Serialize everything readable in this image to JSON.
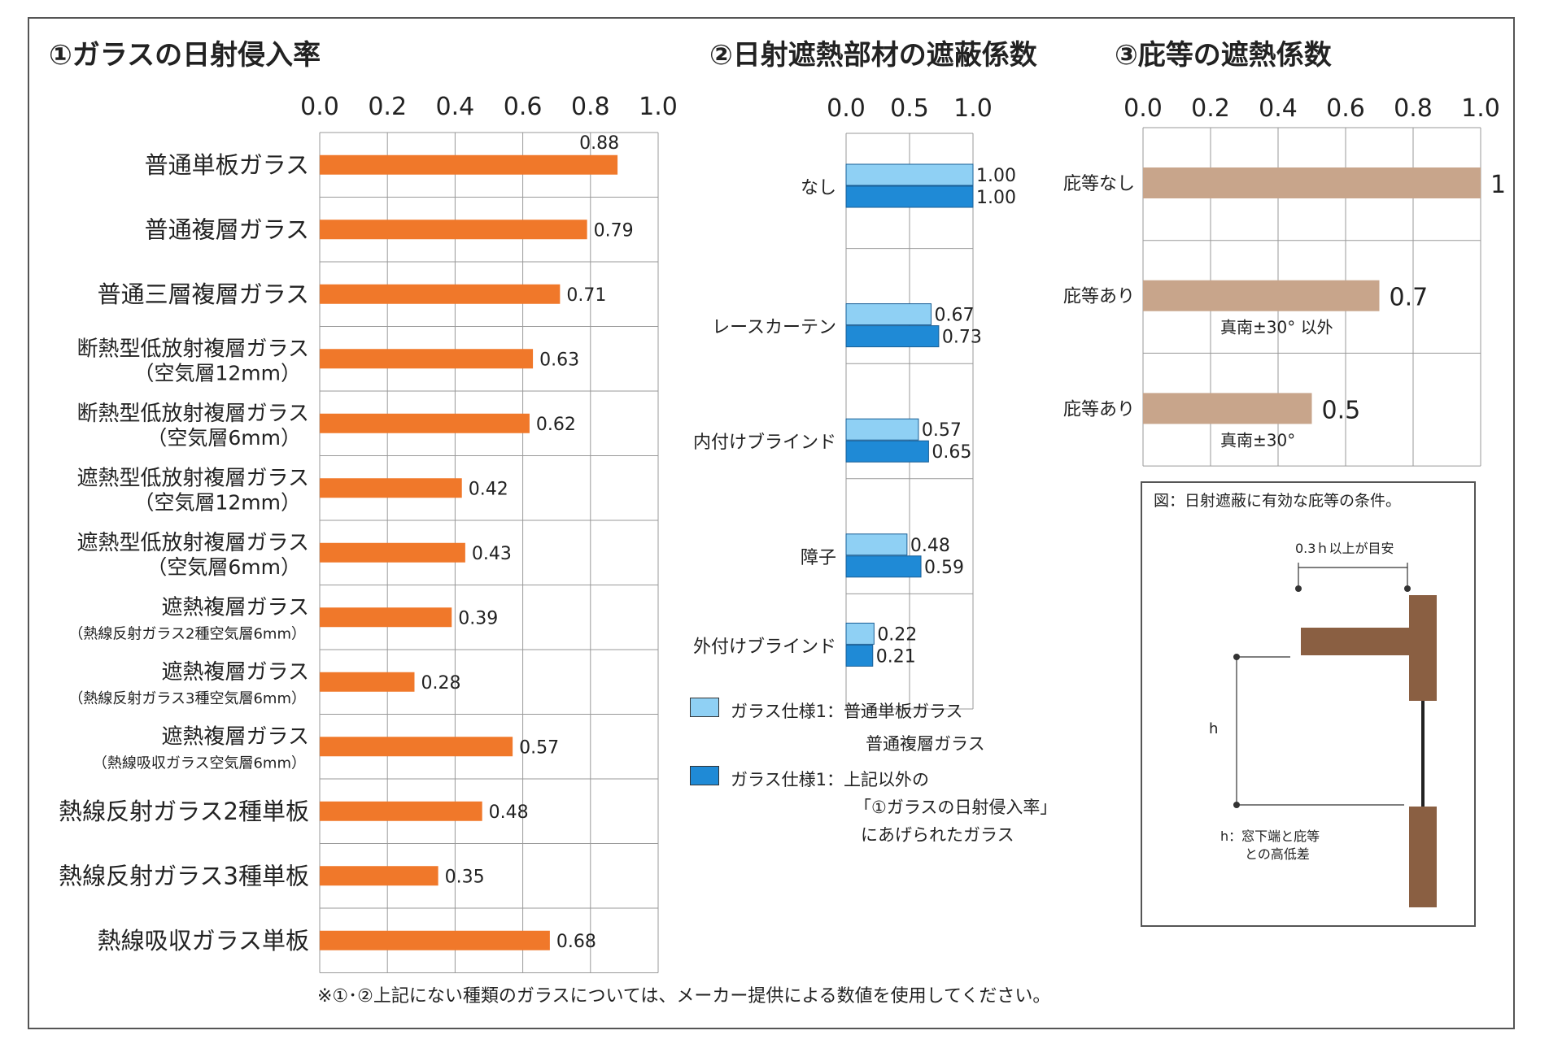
{
  "titles": {
    "t1": "①ガラスの日射侵入率",
    "t2": "②日射遮熱部材の遮蔽係数",
    "t3": "③庇等の遮熱係数"
  },
  "colors": {
    "orange": "#f0782a",
    "light_blue": "#8fd0f4",
    "blue": "#1f8ad6",
    "tan": "#c8a58b",
    "brown": "#8a5f42",
    "grid": "#999999"
  },
  "chart_data": [
    {
      "type": "bar",
      "orientation": "horizontal",
      "xlim": [
        0,
        1.0
      ],
      "ticks": [
        "0.0",
        "0.2",
        "0.4",
        "0.6",
        "0.8",
        "1.0"
      ],
      "categories": [
        [
          "普通単板ガラス"
        ],
        [
          "普通複層ガラス"
        ],
        [
          "普通三層複層ガラス"
        ],
        [
          "断熱型低放射複層ガラス",
          "（空気層12mm）"
        ],
        [
          "断熱型低放射複層ガラス",
          "（空気層6mm）"
        ],
        [
          "遮熱型低放射複層ガラス",
          "（空気層12mm）"
        ],
        [
          "遮熱型低放射複層ガラス",
          "（空気層6mm）"
        ],
        [
          "遮熱複層ガラス",
          "（熱線反射ガラス2種空気層6mm）"
        ],
        [
          "遮熱複層ガラス",
          "（熱線反射ガラス3種空気層6mm）"
        ],
        [
          "遮熱複層ガラス",
          "（熱線吸収ガラス空気層6mm）"
        ],
        [
          "熱線反射ガラス2種単板"
        ],
        [
          "熱線反射ガラス3種単板"
        ],
        [
          "熱線吸収ガラス単板"
        ]
      ],
      "values": [
        0.88,
        0.79,
        0.71,
        0.63,
        0.62,
        0.42,
        0.43,
        0.39,
        0.28,
        0.57,
        0.48,
        0.35,
        0.68
      ],
      "labels": [
        "0.88",
        "0.79",
        "0.71",
        "0.63",
        "0.62",
        "0.42",
        "0.43",
        "0.39",
        "0.28",
        "0.57",
        "0.48",
        "0.35",
        "0.68"
      ]
    },
    {
      "type": "bar",
      "orientation": "horizontal",
      "xlim": [
        0,
        1.0
      ],
      "ticks": [
        "0.0",
        "0.5",
        "1.0"
      ],
      "categories": [
        "なし",
        "レースカーテン",
        "内付けブラインド",
        "障子",
        "外付けブラインド"
      ],
      "series": [
        {
          "values": [
            1.0,
            0.67,
            0.57,
            0.48,
            0.22
          ],
          "labels": [
            "1.00",
            "0.67",
            "0.57",
            "0.48",
            "0.22"
          ]
        },
        {
          "values": [
            1.0,
            0.73,
            0.65,
            0.59,
            0.21
          ],
          "labels": [
            "1.00",
            "0.73",
            "0.65",
            "0.59",
            "0.21"
          ]
        }
      ],
      "legend": [
        {
          "lines": [
            "ガラス仕様1：普通単板ガラス",
            "普通複層ガラス"
          ]
        },
        {
          "lines": [
            "ガラス仕様1：上記以外の",
            "「①ガラスの日射侵入率」",
            "にあげられたガラス"
          ]
        }
      ]
    },
    {
      "type": "bar",
      "orientation": "horizontal",
      "xlim": [
        0,
        1.0
      ],
      "ticks": [
        "0.0",
        "0.2",
        "0.4",
        "0.6",
        "0.8",
        "1.0"
      ],
      "categories": [
        "庇等なし",
        "庇等あり",
        "庇等あり"
      ],
      "values": [
        1.0,
        0.7,
        0.5
      ],
      "labels": [
        "1",
        "0.7",
        "0.5"
      ],
      "sublabels": [
        "",
        "真南±30°  以外",
        "真南±30°"
      ]
    }
  ],
  "diagram": {
    "caption": "図：日射遮蔽に有効な庇等の条件。",
    "guide": "0.3ｈ以上が目安",
    "h_label": "h",
    "note_lines": [
      "h：窓下端と庇等",
      "との高低差"
    ]
  },
  "footnote": "※①･②上記にない種類のガラスについては、メーカー提供による数値を使用してください。"
}
